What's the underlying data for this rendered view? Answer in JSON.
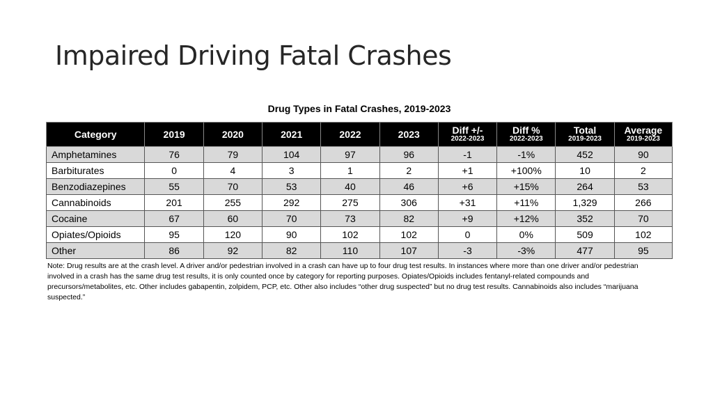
{
  "slide": {
    "title": "Impaired Driving Fatal Crashes"
  },
  "table": {
    "caption": "Drug Types in Fatal Crashes, 2019-2023",
    "headers": [
      {
        "main": "Category",
        "sub": ""
      },
      {
        "main": "2019",
        "sub": ""
      },
      {
        "main": "2020",
        "sub": ""
      },
      {
        "main": "2021",
        "sub": ""
      },
      {
        "main": "2022",
        "sub": ""
      },
      {
        "main": "2023",
        "sub": ""
      },
      {
        "main": "Diff +/-",
        "sub": "2022-2023"
      },
      {
        "main": "Diff %",
        "sub": "2022-2023"
      },
      {
        "main": "Total",
        "sub": "2019-2023"
      },
      {
        "main": "Average",
        "sub": "2019-2023"
      }
    ],
    "rows": [
      [
        "Amphetamines",
        "76",
        "79",
        "104",
        "97",
        "96",
        "-1",
        "-1%",
        "452",
        "90"
      ],
      [
        "Barbiturates",
        "0",
        "4",
        "3",
        "1",
        "2",
        "+1",
        "+100%",
        "10",
        "2"
      ],
      [
        "Benzodiazepines",
        "55",
        "70",
        "53",
        "40",
        "46",
        "+6",
        "+15%",
        "264",
        "53"
      ],
      [
        "Cannabinoids",
        "201",
        "255",
        "292",
        "275",
        "306",
        "+31",
        "+11%",
        "1,329",
        "266"
      ],
      [
        "Cocaine",
        "67",
        "60",
        "70",
        "73",
        "82",
        "+9",
        "+12%",
        "352",
        "70"
      ],
      [
        "Opiates/Opioids",
        "95",
        "120",
        "90",
        "102",
        "102",
        "0",
        "0%",
        "509",
        "102"
      ],
      [
        "Other",
        "86",
        "92",
        "82",
        "110",
        "107",
        "-3",
        "-3%",
        "477",
        "95"
      ]
    ],
    "note": "Note: Drug results are at the crash level. A driver and/or pedestrian involved in a crash can have up to four drug test results. In instances where more than one driver and/or pedestrian involved in a crash has the same drug test results, it is only counted once by category for reporting purposes. Opiates/Opioids includes fentanyl-related compounds and precursors/metabolites, etc. Other includes gabapentin, zolpidem, PCP, etc. Other also includes “other drug suspected” but no drug test results. Cannabinoids also includes “marijuana suspected.”"
  }
}
